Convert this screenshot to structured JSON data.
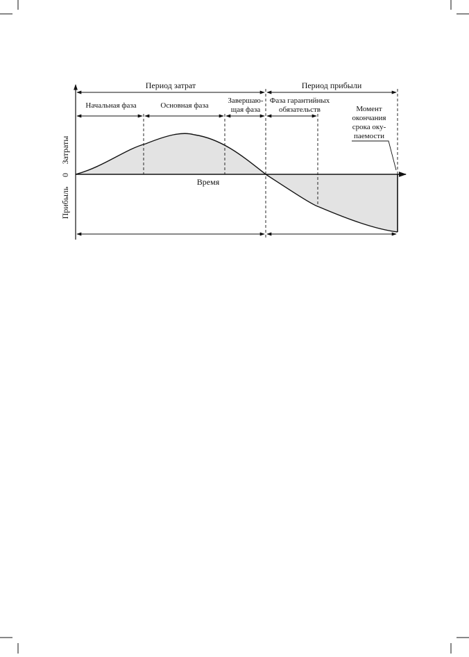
{
  "diagram": {
    "period_costs": "Период затрат",
    "period_profit": "Период прибыли",
    "phase_initial": "Начальная фаза",
    "phase_main": "Основная фаза",
    "phase_final_line1": "Завершаю-",
    "phase_final_line2": "щая фаза",
    "phase_warranty_line1": "Фаза гарантийных",
    "phase_warranty_line2": "обязательств",
    "payback_line1": "Момент",
    "payback_line2": "окончания",
    "payback_line3": "срока оку-",
    "payback_line4": "паемости",
    "y_axis_costs": "Затраты",
    "y_axis_zero": "0",
    "y_axis_profit": "Прибыль",
    "x_axis_time": "Время"
  }
}
